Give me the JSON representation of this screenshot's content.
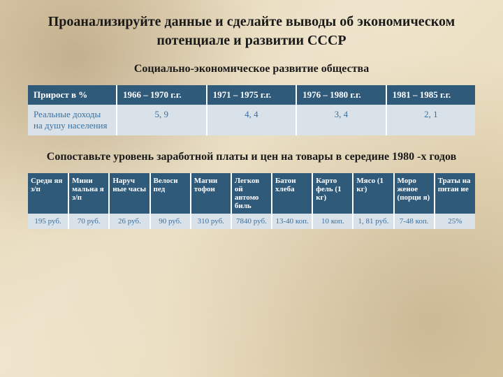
{
  "title": "Проанализируйте данные и сделайте выводы об экономическом потенциале и развитии СССР",
  "subtitle1": "Социально-экономическое развитие общества",
  "table1": {
    "header_bg": "#2f5a7a",
    "header_fg": "#ffffff",
    "body_bg": "#d9e2e8",
    "body_fg": "#3a6fa0",
    "columns": [
      "Прирост в %",
      "1966 – 1970 г.г.",
      "1971 – 1975 г.г.",
      "1976 – 1980 г.г.",
      "1981 – 1985 г.г."
    ],
    "rowLabel": "Реальные доходы на душу населения",
    "values": [
      "5, 9",
      "4, 4",
      "3, 4",
      "2, 1"
    ]
  },
  "subtitle2": "Сопоставьте уровень заработной платы и цен на товары в середине 1980 -х годов",
  "table2": {
    "header_bg": "#2f5a7a",
    "header_fg": "#ffffff",
    "body_bg": "#d9e2e8",
    "body_fg": "#3a6fa0",
    "columns": [
      "Средн яя з/п",
      "Мини мальна я з/п",
      "Наруч ные часы",
      "Велоси пед",
      "Магни тофон",
      "Легков ой автомо биль",
      "Батон хлеба",
      "Карто фель (1 кг)",
      "Мясо (1 кг)",
      "Моро женое (порци я)",
      "Траты на питан ие"
    ],
    "row": [
      "195 руб.",
      "70 руб.",
      "26 руб.",
      "90 руб.",
      "310 руб.",
      "7840 руб.",
      "13-40 коп.",
      "10 коп.",
      "1, 81 руб.",
      "7-48 коп.",
      "25%"
    ]
  }
}
